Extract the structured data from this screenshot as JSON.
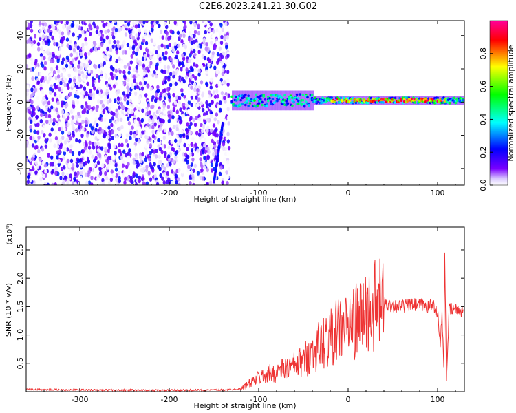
{
  "figure_title": "C2E6.2023.241.21.30.G02",
  "chart_data": [
    {
      "type": "heatmap",
      "xlabel": "Height of straight line (km)",
      "ylabel": "Frequency (Hz)",
      "xlim": [
        -360,
        130
      ],
      "ylim": [
        -50,
        49
      ],
      "x_ticks": [
        -300,
        -200,
        -100,
        0,
        100
      ],
      "y_ticks": [
        -40,
        -20,
        0,
        20,
        40
      ],
      "colorbar": {
        "label": "Normalized spectral amplitude",
        "range": [
          0,
          1
        ],
        "ticks": [
          "0.0",
          "0.2",
          "0.4",
          "0.6",
          "0.8"
        ],
        "colors": [
          "#ffffff",
          "#6a00ff",
          "#0000ff",
          "#00ffff",
          "#00ff00",
          "#ffff00",
          "#ff0000",
          "#ff00aa"
        ]
      },
      "features": [
        {
          "name": "noise",
          "x_range": [
            -360,
            -133
          ],
          "y_range": [
            -50,
            49
          ],
          "amplitude": 0.15
        },
        {
          "name": "signal-band",
          "x_range": [
            -130,
            130
          ],
          "center_hz": 1,
          "amplitude": 0.55
        },
        {
          "name": "strong-core",
          "x_range": [
            -20,
            110
          ],
          "center_hz": 0,
          "amplitude": 0.9
        }
      ]
    },
    {
      "type": "line",
      "xlabel": "Height of straight line (km)",
      "ylabel": "SNR (10 * v/v)",
      "y_multiplier": "(x10",
      "y_multiplier_exp": "4",
      "xlim": [
        -360,
        130
      ],
      "ylim": [
        0,
        29000
      ],
      "x_ticks": [
        -300,
        -200,
        -100,
        0,
        100
      ],
      "y_ticks": [
        5000,
        10000,
        15000,
        20000,
        25000
      ],
      "y_tick_labels": [
        "0.5",
        "1.0",
        "1.5",
        "2.0",
        "2.5"
      ],
      "line_color": "#ee3333",
      "series": [
        {
          "x": [
            -360,
            -300,
            -200,
            -140,
            -120,
            -110,
            -100,
            -90,
            -80,
            -70,
            -60,
            -50,
            -40,
            -30,
            -20,
            -10,
            0,
            10,
            20,
            30,
            40,
            50,
            60,
            70,
            80,
            90,
            95,
            100,
            103,
            105,
            107,
            108,
            110,
            113,
            118,
            125,
            130
          ],
          "y": [
            400,
            300,
            250,
            300,
            500,
            1500,
            2500,
            3000,
            3500,
            4000,
            4500,
            5500,
            7000,
            8500,
            9500,
            11000,
            11500,
            12500,
            14000,
            15000,
            15500,
            15200,
            15000,
            15300,
            15200,
            15000,
            15500,
            14000,
            8000,
            14000,
            4000,
            25000,
            2000,
            14500,
            14500,
            14300,
            14300
          ]
        }
      ]
    }
  ]
}
